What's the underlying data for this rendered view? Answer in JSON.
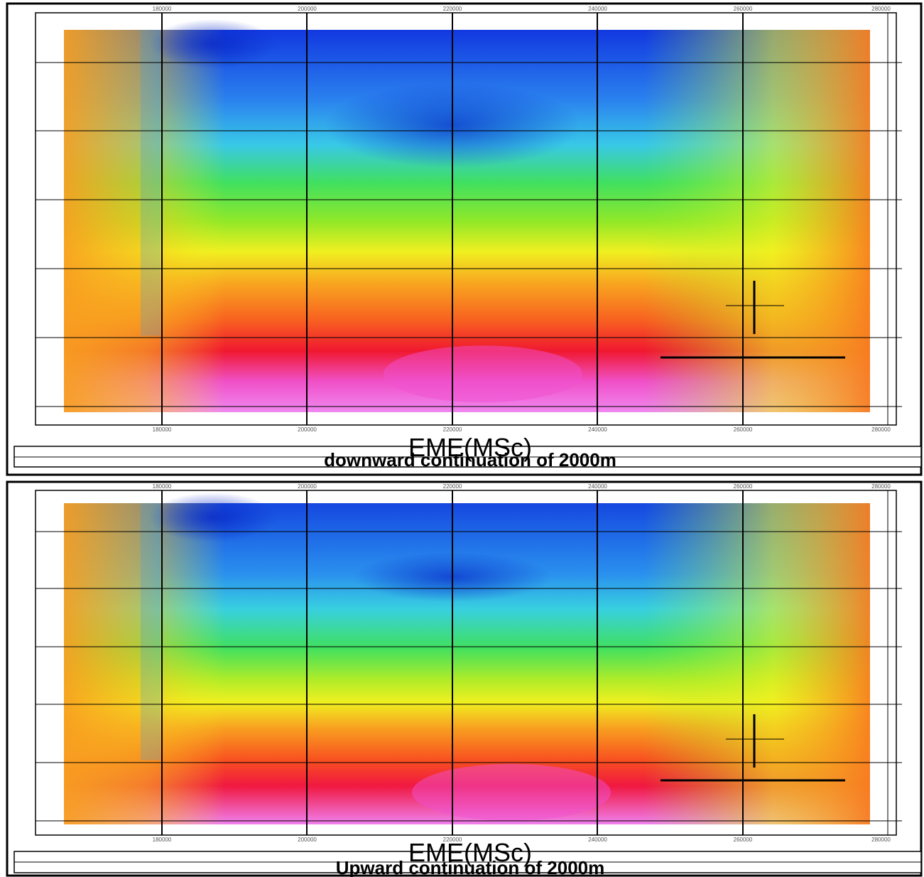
{
  "panels": [
    {
      "title": "EME(MSc)",
      "subtitle": "downward continuation of 2000m",
      "x_ticks": [
        "180000",
        "200000",
        "220000",
        "240000",
        "260000",
        "280000"
      ]
    },
    {
      "title": "EME(MSc)",
      "subtitle": "Upward continuation of 2000m",
      "x_ticks": [
        "180000",
        "200000",
        "220000",
        "240000",
        "260000",
        "280000"
      ]
    }
  ]
}
